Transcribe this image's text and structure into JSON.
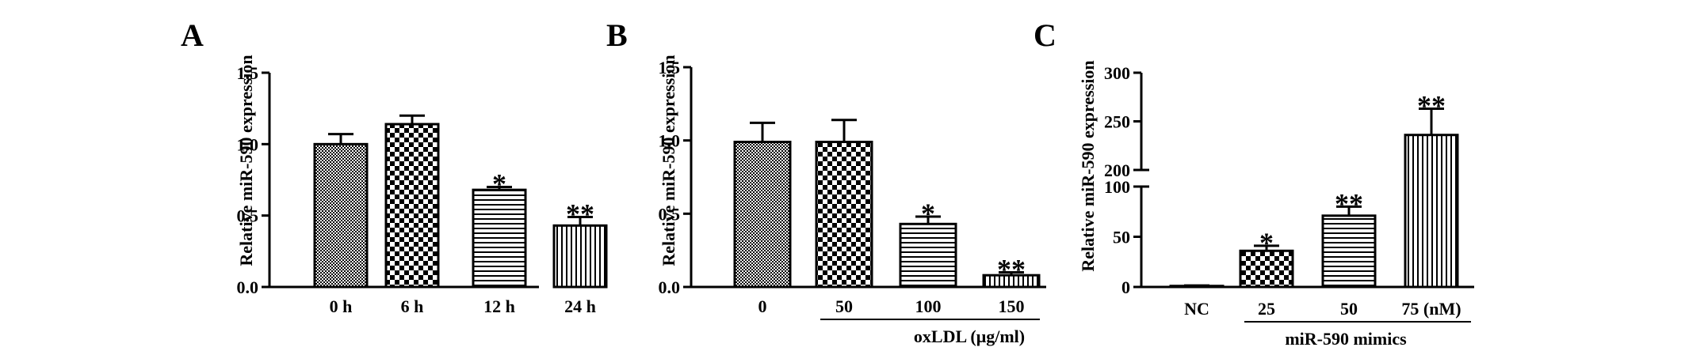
{
  "chart_data": [
    {
      "type": "bar",
      "panel_label": "A",
      "ylabel": "Relative miR-590 expression",
      "xlabel": "",
      "ylim": [
        0,
        1.5
      ],
      "yticks": [
        "0.0",
        "0.5",
        "1.0",
        "1.5"
      ],
      "categories": [
        "0 h",
        "6 h",
        "12 h",
        "24 h"
      ],
      "values": [
        1.0,
        1.14,
        0.68,
        0.43
      ],
      "errors": [
        0.07,
        0.06,
        0.02,
        0.06
      ],
      "significance": [
        "",
        "",
        "*",
        "**"
      ],
      "patterns": [
        "fine-dots",
        "checker",
        "h-lines",
        "v-lines"
      ],
      "group_label": ""
    },
    {
      "type": "bar",
      "panel_label": "B",
      "ylabel": "Relative miR-590 expression",
      "xlabel": "",
      "ylim": [
        0,
        1.5
      ],
      "yticks": [
        "0.0",
        "0.5",
        "1.0",
        "1.5"
      ],
      "categories": [
        "0",
        "50",
        "100",
        "150"
      ],
      "values": [
        0.99,
        0.99,
        0.43,
        0.08
      ],
      "errors": [
        0.13,
        0.15,
        0.05,
        0.02
      ],
      "significance": [
        "",
        "",
        "*",
        "**"
      ],
      "patterns": [
        "fine-dots",
        "checker",
        "h-lines",
        "v-lines"
      ],
      "group_label": "oxLDL (μg/ml)"
    },
    {
      "type": "bar",
      "panel_label": "C",
      "ylabel": "Relative miR-590 expression",
      "xlabel": "",
      "ylim": [
        0,
        300
      ],
      "axis_break": [
        100,
        200
      ],
      "yticks": [
        "0",
        "50",
        "100",
        "200",
        "250",
        "300"
      ],
      "categories": [
        "NC",
        "25",
        "50",
        "75 (nM)"
      ],
      "values": [
        1,
        36,
        71,
        236
      ],
      "errors": [
        0.5,
        5,
        9,
        27
      ],
      "significance": [
        "",
        "*",
        "**",
        "**"
      ],
      "patterns": [
        "fine-dots",
        "checker",
        "h-lines",
        "v-lines"
      ],
      "group_label": "miR-590 mimics"
    }
  ]
}
